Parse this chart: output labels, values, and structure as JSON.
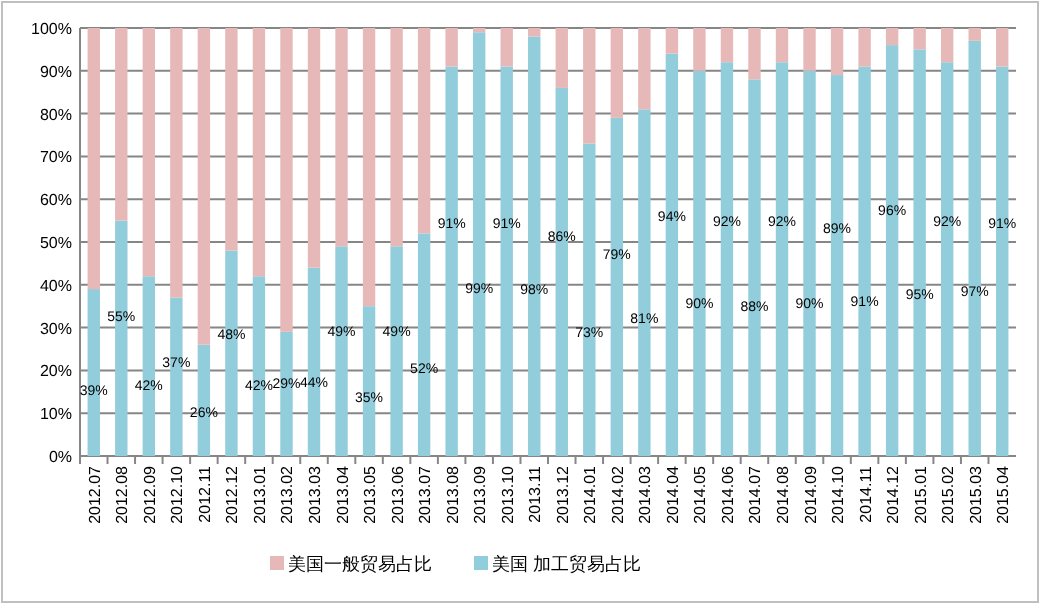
{
  "chart_data": {
    "type": "bar",
    "stacked": true,
    "categories": [
      "2012.07",
      "2012.08",
      "2012.09",
      "2012.10",
      "2012.11",
      "2012.12",
      "2013.01",
      "2013.02",
      "2013.03",
      "2013.04",
      "2013.05",
      "2013.06",
      "2013.07",
      "2013.08",
      "2013.09",
      "2013.10",
      "2013.11",
      "2013.12",
      "2014.01",
      "2014.02",
      "2014.03",
      "2014.04",
      "2014.05",
      "2014.06",
      "2014.07",
      "2014.08",
      "2014.09",
      "2014.10",
      "2014.11",
      "2014.12",
      "2015.01",
      "2015.02",
      "2015.03",
      "2015.04"
    ],
    "series": [
      {
        "name": "美国 加工贸易占比",
        "color": "#92cddc",
        "values": [
          39,
          55,
          42,
          37,
          26,
          48,
          42,
          29,
          44,
          49,
          35,
          49,
          52,
          91,
          99,
          91,
          98,
          86,
          73,
          79,
          81,
          94,
          90,
          92,
          88,
          92,
          90,
          89,
          91,
          96,
          95,
          92,
          97,
          91
        ],
        "value_labels": [
          "39%",
          "55%",
          "42%",
          "37%",
          "26%",
          "48%",
          "42%",
          "29%",
          "44%",
          "49%",
          "35%",
          "49%",
          "52%",
          "91%",
          "99%",
          "91%",
          "98%",
          "86%",
          "73%",
          "79%",
          "81%",
          "94%",
          "90%",
          "92%",
          "88%",
          "92%",
          "90%",
          "89%",
          "91%",
          "96%",
          "95%",
          "92%",
          "97%",
          "91%"
        ]
      },
      {
        "name": "美国一般贸易占比",
        "color": "#e6b9b8",
        "values": [
          61,
          45,
          58,
          63,
          74,
          52,
          58,
          71,
          56,
          51,
          65,
          51,
          48,
          9,
          1,
          9,
          2,
          14,
          27,
          21,
          19,
          6,
          10,
          8,
          12,
          8,
          10,
          11,
          9,
          4,
          5,
          8,
          3,
          9
        ]
      }
    ],
    "ylim": [
      0,
      100
    ],
    "yticks": [
      {
        "value": 0,
        "label": "0%"
      },
      {
        "value": 10,
        "label": "10%"
      },
      {
        "value": 20,
        "label": "20%"
      },
      {
        "value": 30,
        "label": "30%"
      },
      {
        "value": 40,
        "label": "40%"
      },
      {
        "value": 50,
        "label": "50%"
      },
      {
        "value": 60,
        "label": "60%"
      },
      {
        "value": 70,
        "label": "70%"
      },
      {
        "value": 80,
        "label": "80%"
      },
      {
        "value": 90,
        "label": "90%"
      },
      {
        "value": 100,
        "label": "100%"
      }
    ],
    "grid": "y",
    "legend": "bottom"
  }
}
